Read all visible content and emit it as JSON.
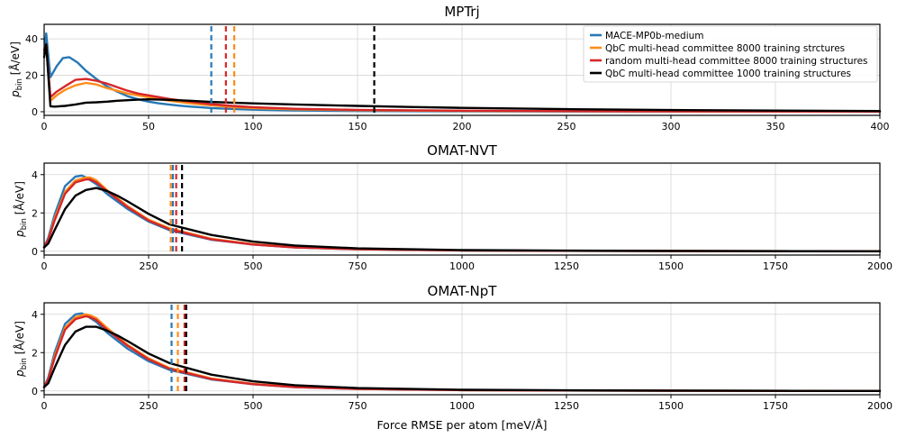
{
  "colors": {
    "MACE-MP0b-medium": "#2878b5",
    "QbC 8000": "#ff8c1a",
    "random 8000": "#d62728",
    "QbC 1000": "#000000"
  },
  "shared": {
    "xlabel": "Force RMSE per atom [meV/Å]",
    "ylabel": "pbin [Å/eV]",
    "ylabel_main": "p",
    "ylabel_sub": "bin",
    "ylabel_unit": " [Å/eV]"
  },
  "chart_data": [
    {
      "type": "line",
      "title": "MPTrj",
      "xlabel": "",
      "ylabel": "pbin [Å/eV]",
      "xlim": [
        0,
        400
      ],
      "ylim": [
        -2,
        48
      ],
      "xticks": [
        0,
        50,
        100,
        150,
        200,
        250,
        300,
        350,
        400
      ],
      "yticks": [
        0,
        20,
        40
      ],
      "legend": {
        "position": "top-right",
        "entries": [
          "MACE-MP0b-medium",
          "QbC multi-head committee 8000 training strctures",
          "random multi-head committee 8000 training structures",
          "QbC multi-head committee 1000 training structures"
        ]
      },
      "series": [
        {
          "name": "MACE-MP0b-medium",
          "color": "#2878b5",
          "x": [
            0,
            1,
            3,
            6,
            9,
            12,
            16,
            20,
            25,
            30,
            35,
            40,
            45,
            50,
            55,
            60,
            65,
            70,
            75,
            80,
            90,
            100,
            120,
            150,
            200,
            250,
            300,
            400
          ],
          "y": [
            32,
            43,
            19,
            25,
            29.5,
            30,
            27,
            22.5,
            18,
            14,
            11,
            8.5,
            6.8,
            5.5,
            4.6,
            3.9,
            3.3,
            2.8,
            2.4,
            2.0,
            1.5,
            1.1,
            0.7,
            0.4,
            0.25,
            0.15,
            0.1,
            0.05
          ]
        },
        {
          "name": "QbC multi-head committee 8000 training strctures",
          "color": "#ff8c1a",
          "x": [
            0,
            1,
            3,
            6,
            10,
            15,
            20,
            25,
            30,
            35,
            40,
            45,
            50,
            55,
            60,
            70,
            80,
            90,
            100,
            120,
            150,
            200,
            250,
            300,
            400
          ],
          "y": [
            33,
            37,
            6,
            9,
            12,
            14.5,
            15.8,
            15,
            13,
            11.5,
            10,
            9,
            8,
            7,
            6,
            4.6,
            3.5,
            2.6,
            2.0,
            1.3,
            0.8,
            0.45,
            0.3,
            0.2,
            0.1
          ]
        },
        {
          "name": "random multi-head committee 8000 training structures",
          "color": "#d62728",
          "x": [
            0,
            1,
            3,
            6,
            10,
            15,
            20,
            25,
            30,
            35,
            40,
            45,
            50,
            55,
            60,
            70,
            80,
            90,
            100,
            120,
            150,
            200,
            250,
            300,
            400
          ],
          "y": [
            34,
            37,
            8,
            11,
            14,
            17.5,
            18,
            17,
            15.5,
            13.5,
            11.5,
            10,
            9,
            8,
            7,
            5.5,
            4.2,
            3.2,
            2.5,
            1.6,
            1.0,
            0.55,
            0.35,
            0.22,
            0.1
          ]
        },
        {
          "name": "QbC multi-head committee 1000 training structures",
          "color": "#000000",
          "x": [
            0,
            1,
            3,
            5,
            10,
            15,
            20,
            25,
            30,
            35,
            40,
            45,
            50,
            60,
            70,
            80,
            90,
            100,
            120,
            150,
            175,
            200,
            250,
            300,
            350,
            400
          ],
          "y": [
            30,
            37,
            3,
            2.8,
            3.2,
            4,
            5,
            5.2,
            5.5,
            6,
            6.3,
            6.6,
            6.8,
            6.5,
            6.0,
            5.4,
            5.0,
            4.6,
            4.0,
            3.2,
            2.6,
            2.1,
            1.4,
            0.9,
            0.6,
            0.4
          ]
        }
      ],
      "vlines": [
        {
          "x": 80,
          "color": "#2878b5"
        },
        {
          "x": 87,
          "color": "#d62728"
        },
        {
          "x": 91,
          "color": "#ff8c1a"
        },
        {
          "x": 158,
          "color": "#000000"
        }
      ]
    },
    {
      "type": "line",
      "title": "OMAT-NVT",
      "xlabel": "",
      "ylabel": "pbin [Å/eV]",
      "xlim": [
        0,
        2000
      ],
      "ylim": [
        -0.2,
        4.6
      ],
      "xticks": [
        0,
        250,
        500,
        750,
        1000,
        1250,
        1500,
        1750,
        2000
      ],
      "yticks": [
        0,
        2,
        4
      ],
      "series": [
        {
          "name": "MACE-MP0b-medium",
          "color": "#2878b5",
          "x": [
            0,
            10,
            25,
            50,
            75,
            90,
            100,
            125,
            150,
            200,
            250,
            300,
            400,
            500,
            600,
            750,
            1000,
            1250,
            1500,
            2000
          ],
          "y": [
            0.2,
            0.7,
            1.9,
            3.4,
            3.9,
            3.95,
            3.85,
            3.5,
            3.0,
            2.2,
            1.55,
            1.1,
            0.6,
            0.35,
            0.2,
            0.1,
            0.04,
            0.02,
            0.01,
            0.0
          ]
        },
        {
          "name": "QbC multi-head committee 8000 training strctures",
          "color": "#ff8c1a",
          "x": [
            0,
            10,
            25,
            50,
            75,
            100,
            110,
            125,
            150,
            200,
            250,
            300,
            400,
            500,
            600,
            750,
            1000,
            1250,
            1500,
            2000
          ],
          "y": [
            0.2,
            0.6,
            1.7,
            3.1,
            3.7,
            3.85,
            3.85,
            3.7,
            3.2,
            2.35,
            1.65,
            1.2,
            0.65,
            0.37,
            0.22,
            0.11,
            0.04,
            0.02,
            0.01,
            0.0
          ]
        },
        {
          "name": "random multi-head committee 8000 training structures",
          "color": "#d62728",
          "x": [
            0,
            10,
            25,
            50,
            75,
            100,
            110,
            125,
            150,
            200,
            250,
            300,
            400,
            500,
            600,
            750,
            1000,
            1250,
            1500,
            2000
          ],
          "y": [
            0.2,
            0.6,
            1.6,
            3.0,
            3.6,
            3.75,
            3.75,
            3.6,
            3.15,
            2.3,
            1.6,
            1.15,
            0.62,
            0.35,
            0.2,
            0.1,
            0.04,
            0.02,
            0.01,
            0.0
          ]
        },
        {
          "name": "QbC multi-head committee 1000 training structures",
          "color": "#000000",
          "x": [
            0,
            10,
            25,
            50,
            75,
            100,
            125,
            150,
            175,
            200,
            250,
            300,
            400,
            500,
            600,
            750,
            1000,
            1250,
            1500,
            2000
          ],
          "y": [
            0.2,
            0.4,
            1.1,
            2.2,
            2.9,
            3.2,
            3.3,
            3.15,
            2.9,
            2.6,
            1.95,
            1.4,
            0.85,
            0.5,
            0.3,
            0.15,
            0.06,
            0.03,
            0.015,
            0.0
          ]
        }
      ],
      "vlines": [
        {
          "x": 303,
          "color": "#ff8c1a"
        },
        {
          "x": 308,
          "color": "#2878b5"
        },
        {
          "x": 316,
          "color": "#d62728"
        },
        {
          "x": 330,
          "color": "#000000"
        }
      ]
    },
    {
      "type": "line",
      "title": "OMAT-NpT",
      "xlabel": "Force RMSE per atom [meV/Å]",
      "ylabel": "pbin [Å/eV]",
      "xlim": [
        0,
        2000
      ],
      "ylim": [
        -0.2,
        4.6
      ],
      "xticks": [
        0,
        250,
        500,
        750,
        1000,
        1250,
        1500,
        1750,
        2000
      ],
      "yticks": [
        0,
        2,
        4
      ],
      "series": [
        {
          "name": "MACE-MP0b-medium",
          "color": "#2878b5",
          "x": [
            0,
            10,
            25,
            50,
            75,
            90,
            100,
            125,
            150,
            200,
            250,
            300,
            400,
            500,
            600,
            750,
            1000,
            1250,
            1500,
            2000
          ],
          "y": [
            0.2,
            0.7,
            2.0,
            3.5,
            4.0,
            4.05,
            3.95,
            3.6,
            3.05,
            2.2,
            1.55,
            1.1,
            0.6,
            0.35,
            0.2,
            0.1,
            0.04,
            0.02,
            0.01,
            0.0
          ]
        },
        {
          "name": "QbC multi-head committee 8000 training strctures",
          "color": "#ff8c1a",
          "x": [
            0,
            10,
            25,
            50,
            75,
            100,
            110,
            125,
            150,
            200,
            250,
            300,
            400,
            500,
            600,
            750,
            1000,
            1250,
            1500,
            2000
          ],
          "y": [
            0.2,
            0.6,
            1.8,
            3.3,
            3.85,
            4.0,
            3.95,
            3.8,
            3.3,
            2.4,
            1.7,
            1.2,
            0.65,
            0.37,
            0.22,
            0.11,
            0.04,
            0.02,
            0.01,
            0.0
          ]
        },
        {
          "name": "random multi-head committee 8000 training structures",
          "color": "#d62728",
          "x": [
            0,
            10,
            25,
            50,
            75,
            100,
            110,
            125,
            150,
            200,
            250,
            300,
            400,
            500,
            600,
            750,
            1000,
            1250,
            1500,
            2000
          ],
          "y": [
            0.2,
            0.6,
            1.7,
            3.2,
            3.75,
            3.9,
            3.85,
            3.7,
            3.2,
            2.35,
            1.65,
            1.15,
            0.62,
            0.35,
            0.2,
            0.1,
            0.04,
            0.02,
            0.01,
            0.0
          ]
        },
        {
          "name": "QbC multi-head committee 1000 training structures",
          "color": "#000000",
          "x": [
            0,
            10,
            25,
            50,
            75,
            100,
            125,
            150,
            175,
            200,
            250,
            300,
            400,
            500,
            600,
            750,
            1000,
            1250,
            1500,
            2000
          ],
          "y": [
            0.2,
            0.4,
            1.2,
            2.4,
            3.1,
            3.35,
            3.35,
            3.15,
            2.9,
            2.6,
            1.95,
            1.45,
            0.85,
            0.5,
            0.3,
            0.15,
            0.06,
            0.03,
            0.015,
            0.0
          ]
        }
      ],
      "vlines": [
        {
          "x": 305,
          "color": "#2878b5"
        },
        {
          "x": 320,
          "color": "#ff8c1a"
        },
        {
          "x": 336,
          "color": "#d62728"
        },
        {
          "x": 340,
          "color": "#000000"
        }
      ]
    }
  ]
}
